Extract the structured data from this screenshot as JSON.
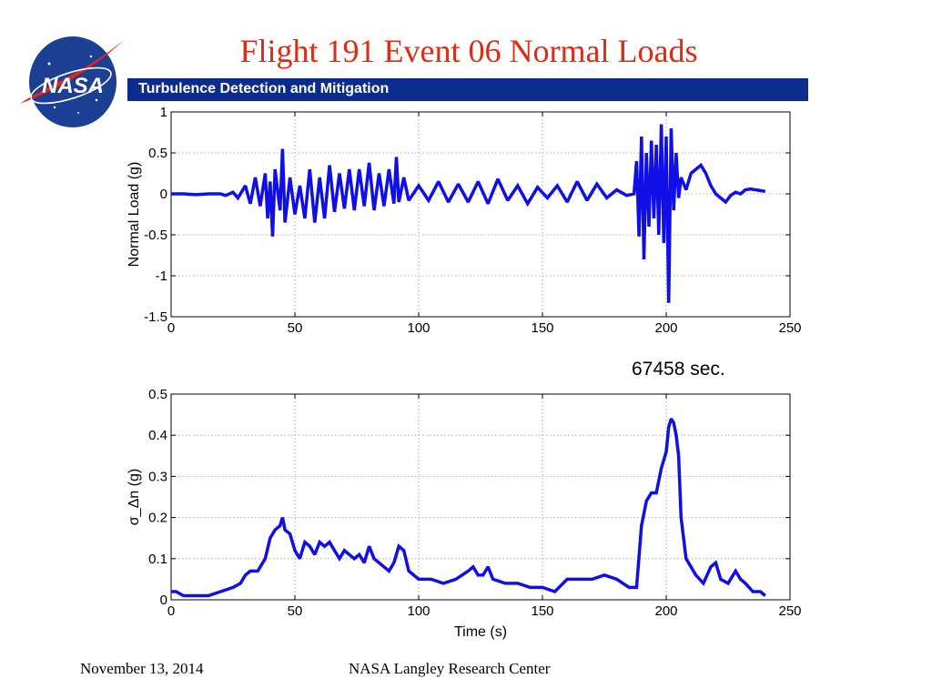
{
  "slide": {
    "title": "Flight 191 Event 06 Normal Loads",
    "banner": "Turbulence Detection and Mitigation",
    "annotation": "67458 sec.",
    "footer_date": "November 13, 2014",
    "footer_org": "NASA Langley Research Center",
    "logo_text": "NASA",
    "colors": {
      "title": "#e02a12",
      "banner": "#0b2c8a",
      "series": "#1010e6",
      "logo_blue": "#1c3f94",
      "logo_red": "#e0261b"
    }
  },
  "chart_data": [
    {
      "type": "line",
      "xlabel": "",
      "ylabel": "Normal Load (g)",
      "xlim": [
        0,
        250
      ],
      "ylim": [
        -1.5,
        1
      ],
      "xticks": [
        0,
        50,
        100,
        150,
        200,
        250
      ],
      "yticks": [
        -1.5,
        -1,
        -0.5,
        0,
        0.5,
        1
      ],
      "ytick_labels": [
        "-1.5",
        "-1",
        "-0.5",
        "0",
        "0.5",
        "1"
      ],
      "grid": true,
      "series": [
        {
          "x": [
            0,
            5,
            10,
            15,
            20,
            22,
            25,
            27,
            30,
            32,
            34,
            36,
            38,
            39,
            40,
            41,
            42,
            44,
            45,
            46,
            48,
            50,
            52,
            54,
            56,
            58,
            60,
            62,
            64,
            66,
            68,
            70,
            72,
            74,
            76,
            78,
            80,
            82,
            84,
            86,
            88,
            90,
            91,
            92,
            94,
            96,
            100,
            104,
            108,
            112,
            116,
            120,
            124,
            128,
            132,
            136,
            140,
            144,
            148,
            152,
            156,
            160,
            164,
            168,
            172,
            176,
            180,
            184,
            187,
            188,
            189,
            190,
            191,
            192,
            193,
            194,
            195,
            196,
            197,
            198,
            199,
            200,
            201,
            202,
            203,
            204,
            205,
            206,
            208,
            210,
            212,
            214,
            216,
            218,
            220,
            222,
            224,
            226,
            228,
            230,
            232,
            234,
            236,
            238,
            240
          ],
          "y": [
            0.0,
            0.0,
            -0.01,
            0.0,
            0.0,
            -0.02,
            0.02,
            -0.05,
            0.1,
            -0.12,
            0.2,
            -0.15,
            0.25,
            -0.3,
            0.15,
            -0.52,
            0.3,
            -0.2,
            0.55,
            -0.35,
            0.2,
            -0.25,
            0.1,
            -0.3,
            0.3,
            -0.35,
            0.2,
            -0.3,
            0.35,
            -0.22,
            0.25,
            -0.18,
            0.3,
            -0.2,
            0.3,
            -0.15,
            0.38,
            -0.2,
            0.25,
            -0.15,
            0.3,
            -0.12,
            0.45,
            -0.1,
            0.2,
            -0.08,
            0.1,
            -0.08,
            0.15,
            -0.1,
            0.12,
            -0.1,
            0.15,
            -0.12,
            0.18,
            -0.08,
            0.1,
            -0.12,
            0.08,
            -0.05,
            0.1,
            -0.1,
            0.15,
            -0.08,
            0.12,
            -0.05,
            0.05,
            -0.02,
            0.0,
            0.4,
            -0.52,
            0.7,
            -0.8,
            0.5,
            -0.4,
            0.65,
            -0.3,
            0.6,
            -0.5,
            0.85,
            -0.6,
            0.7,
            -1.33,
            0.8,
            -0.2,
            0.5,
            -0.05,
            0.2,
            0.05,
            0.25,
            0.3,
            0.35,
            0.25,
            0.1,
            0.0,
            -0.05,
            -0.1,
            -0.02,
            0.02,
            0.0,
            0.05,
            0.06,
            0.05,
            0.04,
            0.03
          ]
        }
      ]
    },
    {
      "type": "line",
      "xlabel": "Time (s)",
      "ylabel": "σ_Δn (g)",
      "xlim": [
        0,
        250
      ],
      "ylim": [
        0,
        0.5
      ],
      "xticks": [
        0,
        50,
        100,
        150,
        200,
        250
      ],
      "yticks": [
        0,
        0.1,
        0.2,
        0.3,
        0.4,
        0.5
      ],
      "ytick_labels": [
        "0",
        "0.1",
        "0.2",
        "0.3",
        "0.4",
        "0.5"
      ],
      "grid": true,
      "series": [
        {
          "x": [
            0,
            2,
            5,
            8,
            10,
            15,
            20,
            25,
            28,
            30,
            32,
            35,
            38,
            40,
            42,
            44,
            45,
            46,
            48,
            50,
            52,
            54,
            56,
            58,
            60,
            62,
            64,
            66,
            68,
            70,
            72,
            74,
            76,
            78,
            80,
            82,
            84,
            86,
            88,
            90,
            92,
            94,
            96,
            98,
            100,
            105,
            110,
            115,
            120,
            122,
            124,
            126,
            128,
            130,
            135,
            140,
            145,
            150,
            155,
            160,
            165,
            170,
            175,
            180,
            185,
            188,
            190,
            192,
            194,
            196,
            198,
            200,
            201,
            202,
            203,
            204,
            205,
            206,
            208,
            210,
            212,
            215,
            218,
            220,
            222,
            225,
            228,
            230,
            232,
            235,
            238,
            240
          ],
          "y": [
            0.02,
            0.02,
            0.01,
            0.01,
            0.01,
            0.01,
            0.02,
            0.03,
            0.04,
            0.06,
            0.07,
            0.07,
            0.1,
            0.15,
            0.17,
            0.18,
            0.2,
            0.17,
            0.16,
            0.12,
            0.1,
            0.14,
            0.13,
            0.11,
            0.14,
            0.13,
            0.14,
            0.12,
            0.1,
            0.12,
            0.11,
            0.1,
            0.11,
            0.09,
            0.13,
            0.1,
            0.09,
            0.08,
            0.07,
            0.09,
            0.13,
            0.12,
            0.07,
            0.06,
            0.05,
            0.05,
            0.04,
            0.05,
            0.07,
            0.08,
            0.06,
            0.06,
            0.08,
            0.05,
            0.04,
            0.04,
            0.03,
            0.03,
            0.02,
            0.05,
            0.05,
            0.05,
            0.06,
            0.05,
            0.03,
            0.03,
            0.18,
            0.24,
            0.26,
            0.26,
            0.32,
            0.36,
            0.42,
            0.44,
            0.43,
            0.4,
            0.35,
            0.2,
            0.1,
            0.08,
            0.06,
            0.04,
            0.08,
            0.09,
            0.05,
            0.04,
            0.07,
            0.05,
            0.04,
            0.02,
            0.02,
            0.01
          ]
        }
      ]
    }
  ]
}
